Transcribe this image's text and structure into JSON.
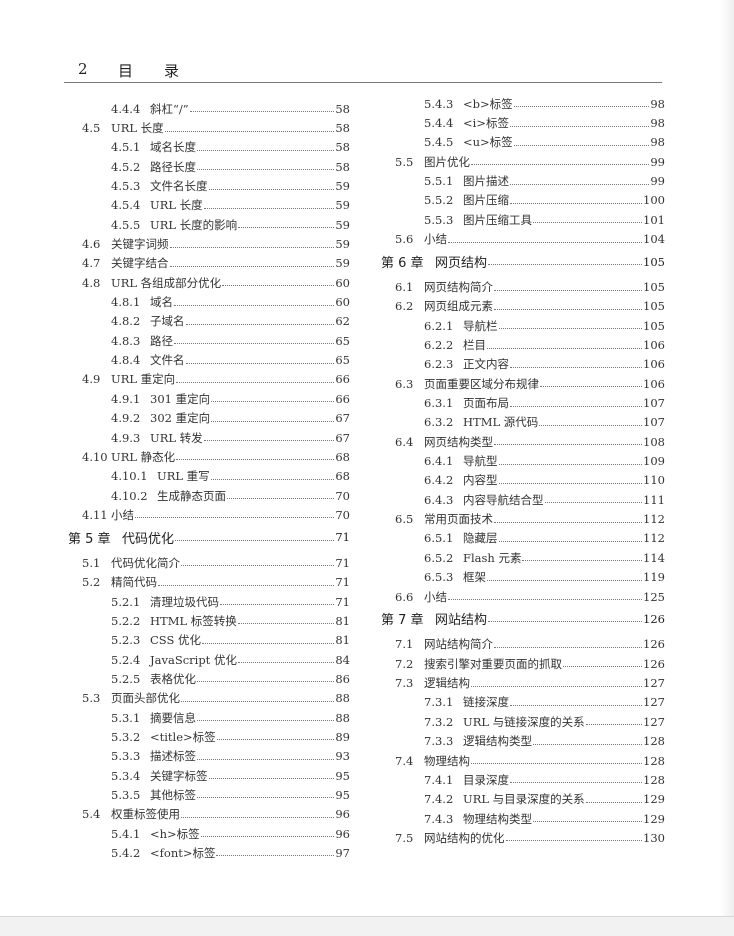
{
  "header": {
    "page_number": "2",
    "title_char_1": "目",
    "title_char_2": "录"
  },
  "columns": [
    [
      {
        "level": 2,
        "num": "4.4.4",
        "title": "斜杠“/”",
        "page": "58"
      },
      {
        "level": 1,
        "num": "4.5",
        "title": "URL 长度",
        "page": "58"
      },
      {
        "level": 2,
        "num": "4.5.1",
        "title": "域名长度",
        "page": "58"
      },
      {
        "level": 2,
        "num": "4.5.2",
        "title": "路径长度",
        "page": "58"
      },
      {
        "level": 2,
        "num": "4.5.3",
        "title": "文件名长度",
        "page": "59"
      },
      {
        "level": 2,
        "num": "4.5.4",
        "title": "URL 长度",
        "page": "59"
      },
      {
        "level": 2,
        "num": "4.5.5",
        "title": "URL 长度的影响",
        "page": "59"
      },
      {
        "level": 1,
        "num": "4.6",
        "title": "关键字词频",
        "page": "59"
      },
      {
        "level": 1,
        "num": "4.7",
        "title": "关键字结合",
        "page": "59"
      },
      {
        "level": 1,
        "num": "4.8",
        "title": "URL 各组成部分优化",
        "page": "60"
      },
      {
        "level": 2,
        "num": "4.8.1",
        "title": "域名",
        "page": "60"
      },
      {
        "level": 2,
        "num": "4.8.2",
        "title": "子域名",
        "page": "62"
      },
      {
        "level": 2,
        "num": "4.8.3",
        "title": "路径",
        "page": "65"
      },
      {
        "level": 2,
        "num": "4.8.4",
        "title": "文件名",
        "page": "65"
      },
      {
        "level": 1,
        "num": "4.9",
        "title": "URL 重定向",
        "page": "66"
      },
      {
        "level": 2,
        "num": "4.9.1",
        "title": "301 重定向",
        "page": "66"
      },
      {
        "level": 2,
        "num": "4.9.2",
        "title": "302 重定向",
        "page": "67"
      },
      {
        "level": 2,
        "num": "4.9.3",
        "title": "URL 转发",
        "page": "67"
      },
      {
        "level": 1,
        "num": "4.10",
        "title": "URL 静态化",
        "page": "68"
      },
      {
        "level": 3,
        "num": "4.10.1",
        "title": "URL 重写",
        "page": "68"
      },
      {
        "level": 3,
        "num": "4.10.2",
        "title": "生成静态页面",
        "page": "70"
      },
      {
        "level": 1,
        "num": "4.11",
        "title": "小结",
        "page": "70"
      },
      {
        "level": 0,
        "num": "第 5 章",
        "title": "代码优化",
        "page": "71"
      },
      {
        "level": 1,
        "num": "5.1",
        "title": "代码优化简介",
        "page": "71"
      },
      {
        "level": 1,
        "num": "5.2",
        "title": "精简代码",
        "page": "71"
      },
      {
        "level": 2,
        "num": "5.2.1",
        "title": "清理垃圾代码",
        "page": "71"
      },
      {
        "level": 2,
        "num": "5.2.2",
        "title": "HTML 标签转换",
        "page": "81"
      },
      {
        "level": 2,
        "num": "5.2.3",
        "title": "CSS 优化",
        "page": "81"
      },
      {
        "level": 2,
        "num": "5.2.4",
        "title": "JavaScript 优化",
        "page": "84"
      },
      {
        "level": 2,
        "num": "5.2.5",
        "title": "表格优化",
        "page": "86"
      },
      {
        "level": 1,
        "num": "5.3",
        "title": "页面头部优化",
        "page": "88"
      },
      {
        "level": 2,
        "num": "5.3.1",
        "title": "摘要信息",
        "page": "88"
      },
      {
        "level": 2,
        "num": "5.3.2",
        "title": "<title>标签",
        "page": "89"
      },
      {
        "level": 2,
        "num": "5.3.3",
        "title": "描述标签",
        "page": "93"
      },
      {
        "level": 2,
        "num": "5.3.4",
        "title": "关键字标签",
        "page": "95"
      },
      {
        "level": 2,
        "num": "5.3.5",
        "title": "其他标签",
        "page": "95"
      },
      {
        "level": 1,
        "num": "5.4",
        "title": "权重标签使用",
        "page": "96"
      },
      {
        "level": 2,
        "num": "5.4.1",
        "title": "<h>标签",
        "page": "96"
      },
      {
        "level": 2,
        "num": "5.4.2",
        "title": "<font>标签",
        "page": "97"
      }
    ],
    [
      {
        "level": 2,
        "num": "5.4.3",
        "title": "<b>标签",
        "page": "98"
      },
      {
        "level": 2,
        "num": "5.4.4",
        "title": "<i>标签",
        "page": "98"
      },
      {
        "level": 2,
        "num": "5.4.5",
        "title": "<u>标签",
        "page": "98"
      },
      {
        "level": 1,
        "num": "5.5",
        "title": "图片优化",
        "page": "99"
      },
      {
        "level": 2,
        "num": "5.5.1",
        "title": "图片描述",
        "page": "99"
      },
      {
        "level": 2,
        "num": "5.5.2",
        "title": "图片压缩",
        "page": "100"
      },
      {
        "level": 2,
        "num": "5.5.3",
        "title": "图片压缩工具",
        "page": "101"
      },
      {
        "level": 1,
        "num": "5.6",
        "title": "小结",
        "page": "104"
      },
      {
        "level": 0,
        "num": "第 6 章",
        "title": "网页结构",
        "page": "105"
      },
      {
        "level": 1,
        "num": "6.1",
        "title": "网页结构简介",
        "page": "105"
      },
      {
        "level": 1,
        "num": "6.2",
        "title": "网页组成元素",
        "page": "105"
      },
      {
        "level": 2,
        "num": "6.2.1",
        "title": "导航栏",
        "page": "105"
      },
      {
        "level": 2,
        "num": "6.2.2",
        "title": "栏目",
        "page": "106"
      },
      {
        "level": 2,
        "num": "6.2.3",
        "title": "正文内容",
        "page": "106"
      },
      {
        "level": 1,
        "num": "6.3",
        "title": "页面重要区域分布规律",
        "page": "106"
      },
      {
        "level": 2,
        "num": "6.3.1",
        "title": "页面布局",
        "page": "107"
      },
      {
        "level": 2,
        "num": "6.3.2",
        "title": "HTML 源代码",
        "page": "107"
      },
      {
        "level": 1,
        "num": "6.4",
        "title": "网页结构类型",
        "page": "108"
      },
      {
        "level": 2,
        "num": "6.4.1",
        "title": "导航型",
        "page": "109"
      },
      {
        "level": 2,
        "num": "6.4.2",
        "title": "内容型",
        "page": "110"
      },
      {
        "level": 2,
        "num": "6.4.3",
        "title": "内容导航结合型",
        "page": "111"
      },
      {
        "level": 1,
        "num": "6.5",
        "title": "常用页面技术",
        "page": "112"
      },
      {
        "level": 2,
        "num": "6.5.1",
        "title": "隐藏层",
        "page": "112"
      },
      {
        "level": 2,
        "num": "6.5.2",
        "title": "Flash 元素",
        "page": "114"
      },
      {
        "level": 2,
        "num": "6.5.3",
        "title": "框架",
        "page": "119"
      },
      {
        "level": 1,
        "num": "6.6",
        "title": "小结",
        "page": "125"
      },
      {
        "level": 0,
        "num": "第 7 章",
        "title": "网站结构",
        "page": "126"
      },
      {
        "level": 1,
        "num": "7.1",
        "title": "网站结构简介",
        "page": "126"
      },
      {
        "level": 1,
        "num": "7.2",
        "title": "搜索引擎对重要页面的抓取",
        "page": "126"
      },
      {
        "level": 1,
        "num": "7.3",
        "title": "逻辑结构",
        "page": "127"
      },
      {
        "level": 2,
        "num": "7.3.1",
        "title": "链接深度",
        "page": "127"
      },
      {
        "level": 2,
        "num": "7.3.2",
        "title": "URL 与链接深度的关系",
        "page": "127"
      },
      {
        "level": 2,
        "num": "7.3.3",
        "title": "逻辑结构类型",
        "page": "128"
      },
      {
        "level": 1,
        "num": "7.4",
        "title": "物理结构",
        "page": "128"
      },
      {
        "level": 2,
        "num": "7.4.1",
        "title": "目录深度",
        "page": "128"
      },
      {
        "level": 2,
        "num": "7.4.2",
        "title": "URL 与目录深度的关系",
        "page": "129"
      },
      {
        "level": 2,
        "num": "7.4.3",
        "title": "物理结构类型",
        "page": "129"
      },
      {
        "level": 1,
        "num": "7.5",
        "title": "网站结构的优化",
        "page": "130"
      }
    ]
  ]
}
